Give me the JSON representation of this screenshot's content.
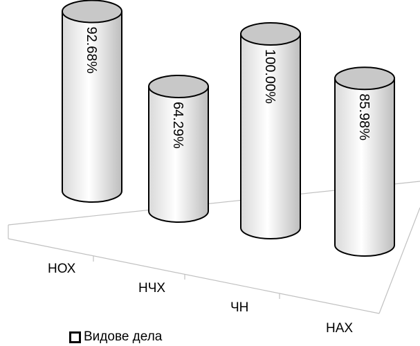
{
  "chart_data": {
    "type": "bar",
    "style": "3d-cylinder",
    "categories": [
      "НОХ",
      "НЧХ",
      "ЧН",
      "НАХ"
    ],
    "series": [
      {
        "name": "Видове дела",
        "values": [
          92.68,
          64.29,
          100.0,
          85.98
        ]
      }
    ],
    "data_labels": [
      "92.68%",
      "64.29%",
      "100.00%",
      "85.98%"
    ],
    "title": "",
    "xlabel": "",
    "ylabel": "",
    "ylim": [
      0,
      100
    ],
    "grid": false,
    "legend_position": "bottom-left",
    "colors": {
      "cylinder_top": "#c8c8c8",
      "cylinder_body": "#ffffff",
      "outline": "#000000",
      "floor": "#c0c0c0"
    }
  }
}
